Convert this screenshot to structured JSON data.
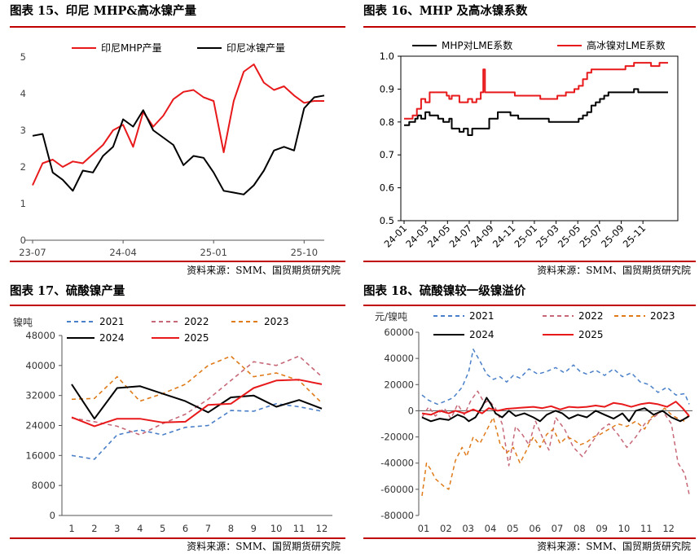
{
  "panels": [
    {
      "title": "图表 15、印尼 MHP&高冰镍产量",
      "source": "资料来源：SMM、国贸期货研究院"
    },
    {
      "title": "图表 16、MHP 及高冰镍系数",
      "source": "资料来源：SMM、国贸期货研究院"
    },
    {
      "title": "图表 17、硫酸镍产量",
      "source": "资料来源：SMM、国贸期货研究院"
    },
    {
      "title": "图表 18、硫酸镍较一级镍溢价",
      "source": "资料来源：SMM、国贸期货研究院"
    }
  ],
  "chart_data": [
    {
      "type": "line",
      "title": "印尼 MHP&高冰镍产量",
      "ylim": [
        0,
        5
      ],
      "yticks": [
        "0",
        "1",
        "2",
        "3",
        "4",
        "5"
      ],
      "xticks": [
        {
          "i": 0,
          "label": "23-07"
        },
        {
          "i": 9,
          "label": "24-04"
        },
        {
          "i": 18,
          "label": "25-01"
        },
        {
          "i": 27,
          "label": "25-10"
        }
      ],
      "n": 30,
      "legend": "top",
      "series": [
        {
          "name": "印尼MHP产量",
          "color": "#e8191b",
          "values": [
            1.5,
            2.1,
            2.2,
            2.0,
            2.15,
            2.1,
            2.35,
            2.6,
            3.0,
            3.15,
            2.55,
            3.5,
            3.1,
            3.4,
            3.85,
            4.05,
            4.1,
            3.9,
            3.8,
            2.4,
            3.8,
            4.6,
            4.8,
            4.3,
            4.1,
            4.2,
            3.95,
            3.75,
            3.8,
            3.8
          ]
        },
        {
          "name": "印尼冰镍产量",
          "color": "#000000",
          "values": [
            2.85,
            2.9,
            1.85,
            1.65,
            1.35,
            1.9,
            1.85,
            2.3,
            2.55,
            3.3,
            3.1,
            3.55,
            3.0,
            2.8,
            2.6,
            2.05,
            2.3,
            2.25,
            1.85,
            1.35,
            1.3,
            1.25,
            1.5,
            1.9,
            2.45,
            2.55,
            2.45,
            3.6,
            3.9,
            3.95
          ]
        }
      ]
    },
    {
      "type": "line",
      "title": "MHP 及高冰镍系数",
      "ylim": [
        0.5,
        1.0
      ],
      "yticks": [
        "0.5",
        "0.6",
        "0.7",
        "0.8",
        "0.9",
        "1.0"
      ],
      "xticks": [
        "24-01",
        "24-03",
        "24-05",
        "24-07",
        "24-09",
        "24-11",
        "25-01",
        "25-03",
        "25-05",
        "25-07",
        "25-09",
        "25-11"
      ],
      "legend": "top",
      "series": [
        {
          "name": "MHP对LME系数",
          "color": "#000000",
          "x": [
            0,
            0.3,
            0.6,
            1.0,
            1.3,
            1.6,
            2.0,
            2.5,
            3.0,
            3.5,
            4.0,
            4.3,
            4.6,
            5.0,
            5.3,
            5.6,
            6.0,
            6.5,
            7.0,
            7.5,
            8.0,
            9.0,
            10.0,
            11.0,
            11.5,
            12.0,
            12.5,
            13.0,
            13.4,
            13.8,
            14.0,
            15.0,
            16.0,
            17.0,
            18.0,
            18.5,
            19.0,
            19.5,
            20.0,
            20.5,
            21.0,
            21.5,
            22.0,
            22.5,
            23.0,
            23.5,
            24.0,
            24.5,
            25.0,
            25.5,
            26.0,
            26.5,
            27.0,
            27.5,
            28.0,
            28.5,
            29.0,
            30.0,
            31.0
          ],
          "values": [
            0.79,
            0.79,
            0.8,
            0.8,
            0.81,
            0.82,
            0.81,
            0.83,
            0.82,
            0.82,
            0.81,
            0.81,
            0.8,
            0.8,
            0.81,
            0.78,
            0.78,
            0.77,
            0.78,
            0.76,
            0.78,
            0.78,
            0.81,
            0.83,
            0.83,
            0.83,
            0.82,
            0.82,
            0.81,
            0.81,
            0.81,
            0.81,
            0.81,
            0.8,
            0.8,
            0.8,
            0.8,
            0.8,
            0.8,
            0.81,
            0.82,
            0.83,
            0.85,
            0.86,
            0.87,
            0.88,
            0.89,
            0.89,
            0.89,
            0.89,
            0.89,
            0.89,
            0.9,
            0.89,
            0.89,
            0.89,
            0.89,
            0.89,
            0.89
          ]
        },
        {
          "name": "高冰镍对LME系数",
          "color": "#e8191b",
          "x": [
            0,
            0.5,
            1.0,
            1.5,
            2.0,
            2.5,
            3.0,
            3.5,
            4.0,
            4.3,
            4.6,
            5.0,
            5.3,
            5.6,
            6.0,
            6.5,
            7.0,
            7.5,
            8.0,
            8.5,
            9.0,
            9.3,
            9.5,
            10.0,
            11.0,
            12.0,
            13.0,
            14.0,
            15.0,
            16.0,
            17.0,
            18.0,
            18.5,
            19.0,
            19.5,
            20.0,
            20.5,
            21.0,
            21.5,
            22.0,
            23.0,
            24.0,
            25.0,
            26.0,
            27.0,
            28.0,
            29.0,
            30.0,
            31.0
          ],
          "values": [
            0.81,
            0.81,
            0.82,
            0.84,
            0.87,
            0.86,
            0.89,
            0.89,
            0.89,
            0.89,
            0.89,
            0.88,
            0.87,
            0.88,
            0.88,
            0.86,
            0.86,
            0.87,
            0.86,
            0.87,
            0.89,
            0.96,
            0.89,
            0.89,
            0.89,
            0.89,
            0.88,
            0.88,
            0.88,
            0.87,
            0.87,
            0.88,
            0.88,
            0.89,
            0.89,
            0.9,
            0.91,
            0.93,
            0.95,
            0.96,
            0.96,
            0.96,
            0.96,
            0.97,
            0.98,
            0.98,
            0.97,
            0.98,
            0.98
          ]
        }
      ]
    },
    {
      "type": "line",
      "title": "硫酸镍产量",
      "ylabel": "镍吨",
      "ylim": [
        0,
        48000
      ],
      "yticks": [
        "0",
        "8000",
        "16000",
        "24000",
        "32000",
        "40000",
        "48000"
      ],
      "categories": [
        "1",
        "2",
        "3",
        "4",
        "5",
        "6",
        "7",
        "8",
        "9",
        "10",
        "11",
        "12"
      ],
      "legend": "top",
      "series": [
        {
          "name": "2021",
          "color": "#4a7fc9",
          "dash": "5,4",
          "values": [
            16000,
            15000,
            21500,
            22800,
            21500,
            23500,
            24000,
            28000,
            27800,
            29800,
            29000,
            27800
          ]
        },
        {
          "name": "2022",
          "color": "#c66877",
          "dash": "5,4",
          "values": [
            26000,
            25000,
            23800,
            21500,
            24500,
            27000,
            31000,
            36000,
            41000,
            40000,
            42500,
            37000
          ]
        },
        {
          "name": "2023",
          "color": "#e07b1a",
          "dash": "5,4",
          "values": [
            31000,
            31200,
            37000,
            30500,
            32500,
            35000,
            40000,
            42500,
            37000,
            38000,
            36000,
            30000
          ]
        },
        {
          "name": "2024",
          "color": "#000000",
          "dash": "",
          "values": [
            35000,
            25800,
            34000,
            34500,
            32500,
            30500,
            27500,
            31500,
            32000,
            29000,
            30800,
            28500
          ]
        },
        {
          "name": "2025",
          "color": "#e8191b",
          "dash": "",
          "values": [
            26200,
            23800,
            25800,
            25800,
            24800,
            25000,
            29500,
            29800,
            34000,
            36000,
            36200,
            35000
          ]
        }
      ]
    },
    {
      "type": "line",
      "title": "硫酸镍较一级镍溢价",
      "ylabel": "元/镍吨",
      "ylim": [
        -80000,
        60000
      ],
      "yticks": [
        "-80000",
        "-60000",
        "-40000",
        "-20000",
        "0",
        "20000",
        "40000",
        "60000"
      ],
      "categories": [
        "01",
        "02",
        "03",
        "04",
        "05",
        "06",
        "07",
        "08",
        "09",
        "10",
        "11",
        "12"
      ],
      "legend": "top",
      "series": [
        {
          "name": "2021",
          "color": "#4a7fc9",
          "dash": "5,4",
          "x": [
            0.0,
            0.3,
            0.7,
            1.0,
            1.4,
            1.8,
            2.1,
            2.3,
            2.6,
            2.9,
            3.2,
            3.5,
            3.8,
            4.1,
            4.4,
            4.8,
            5.2,
            5.6,
            6.0,
            6.4,
            6.8,
            7.1,
            7.4,
            7.8,
            8.2,
            8.6,
            9.0,
            9.4,
            9.8,
            10.2,
            10.6,
            11.0,
            11.4,
            11.8,
            12.0
          ],
          "values": [
            12000,
            8000,
            5000,
            7000,
            10000,
            18000,
            30000,
            47000,
            38000,
            28000,
            24000,
            26000,
            22000,
            27000,
            25000,
            32000,
            28000,
            30000,
            33000,
            29000,
            35000,
            30000,
            28000,
            31000,
            27000,
            32000,
            26000,
            29000,
            22000,
            20000,
            14000,
            18000,
            12000,
            13000,
            5000
          ]
        },
        {
          "name": "2022",
          "color": "#c66877",
          "dash": "5,4",
          "x": [
            0.0,
            0.3,
            0.6,
            1.0,
            1.3,
            1.6,
            1.9,
            2.2,
            2.5,
            2.8,
            3.0,
            3.3,
            3.6,
            3.9,
            4.2,
            4.5,
            4.8,
            5.1,
            5.4,
            5.7,
            6.0,
            6.4,
            6.8,
            7.2,
            7.6,
            8.0,
            8.4,
            8.8,
            9.2,
            9.6,
            10.0,
            10.4,
            10.8,
            11.2,
            11.5,
            11.8,
            12.0
          ],
          "values": [
            -5000,
            3000,
            -4000,
            2000,
            -6000,
            5000,
            -3000,
            8000,
            15000,
            6000,
            8000,
            2000,
            -10000,
            -42000,
            -12000,
            -18000,
            -26000,
            -8000,
            -20000,
            -30000,
            -5000,
            -14000,
            -28000,
            -35000,
            -25000,
            -15000,
            -10000,
            -18000,
            -28000,
            -20000,
            -10000,
            -5000,
            0,
            -10000,
            -40000,
            -48000,
            -64000
          ]
        },
        {
          "name": "2023",
          "color": "#e07b1a",
          "dash": "5,4",
          "x": [
            0.0,
            0.2,
            0.4,
            0.6,
            0.8,
            1.0,
            1.2,
            1.5,
            1.8,
            2.0,
            2.3,
            2.6,
            2.9,
            3.2,
            3.5,
            3.8,
            4.1,
            4.4,
            4.7,
            5.0,
            5.3,
            5.6,
            5.9,
            6.2,
            6.5,
            6.8,
            7.1,
            7.4,
            7.7,
            8.0,
            8.4,
            8.8,
            9.2,
            9.6,
            10.0,
            10.3,
            10.6,
            10.9,
            11.2,
            11.5,
            11.8,
            12.0
          ],
          "values": [
            -65000,
            -40000,
            -45000,
            -52000,
            -55000,
            -58000,
            -60000,
            -38000,
            -28000,
            -35000,
            -20000,
            -25000,
            -15000,
            -5000,
            -25000,
            -32000,
            -28000,
            -40000,
            -30000,
            -20000,
            -28000,
            -18000,
            -14000,
            -25000,
            -20000,
            -22000,
            -26000,
            -24000,
            -20000,
            -18000,
            -14000,
            -10000,
            -12000,
            -8000,
            -14000,
            -5000,
            -2000,
            2000,
            -3000,
            -6000,
            -8000,
            -2000
          ]
        },
        {
          "name": "2024",
          "color": "#000000",
          "dash": "",
          "x": [
            0.0,
            0.4,
            0.8,
            1.2,
            1.6,
            1.9,
            2.1,
            2.4,
            2.7,
            2.9,
            3.1,
            3.3,
            3.6,
            3.9,
            4.2,
            4.6,
            5.0,
            5.3,
            5.6,
            6.0,
            6.3,
            6.6,
            7.0,
            7.4,
            7.8,
            8.2,
            8.6,
            9.0,
            9.3,
            9.6,
            10.0,
            10.4,
            10.8,
            11.2,
            11.6,
            12.0
          ],
          "values": [
            -5000,
            -8000,
            -6000,
            -7000,
            -3000,
            -5000,
            -8000,
            -5000,
            3000,
            10000,
            5000,
            -2000,
            -5000,
            0,
            -4000,
            -2000,
            -5000,
            -8000,
            -3000,
            0,
            -2000,
            -6000,
            -3000,
            -5000,
            0,
            -3000,
            -6000,
            -2000,
            -8000,
            0,
            2000,
            -3000,
            0,
            -5000,
            -8000,
            -4000
          ]
        },
        {
          "name": "2025",
          "color": "#e8191b",
          "dash": "",
          "x": [
            0.0,
            0.4,
            0.8,
            1.2,
            1.5,
            1.9,
            2.3,
            2.7,
            3.0,
            3.4,
            3.8,
            4.2,
            4.6,
            5.0,
            5.4,
            5.8,
            6.2,
            6.6,
            7.0,
            7.4,
            7.8,
            8.2,
            8.6,
            9.0,
            9.4,
            9.8,
            10.2,
            10.6,
            11.0,
            11.4,
            11.7,
            12.0
          ],
          "values": [
            -2000,
            -3000,
            0,
            -2000,
            0,
            -2000,
            1000,
            -2000,
            2000,
            0,
            1500,
            2000,
            2500,
            3000,
            2000,
            3500,
            1000,
            3000,
            2500,
            3000,
            4000,
            3000,
            6000,
            5000,
            3000,
            5000,
            6000,
            5000,
            3000,
            7000,
            2000,
            -4000
          ]
        }
      ]
    }
  ]
}
